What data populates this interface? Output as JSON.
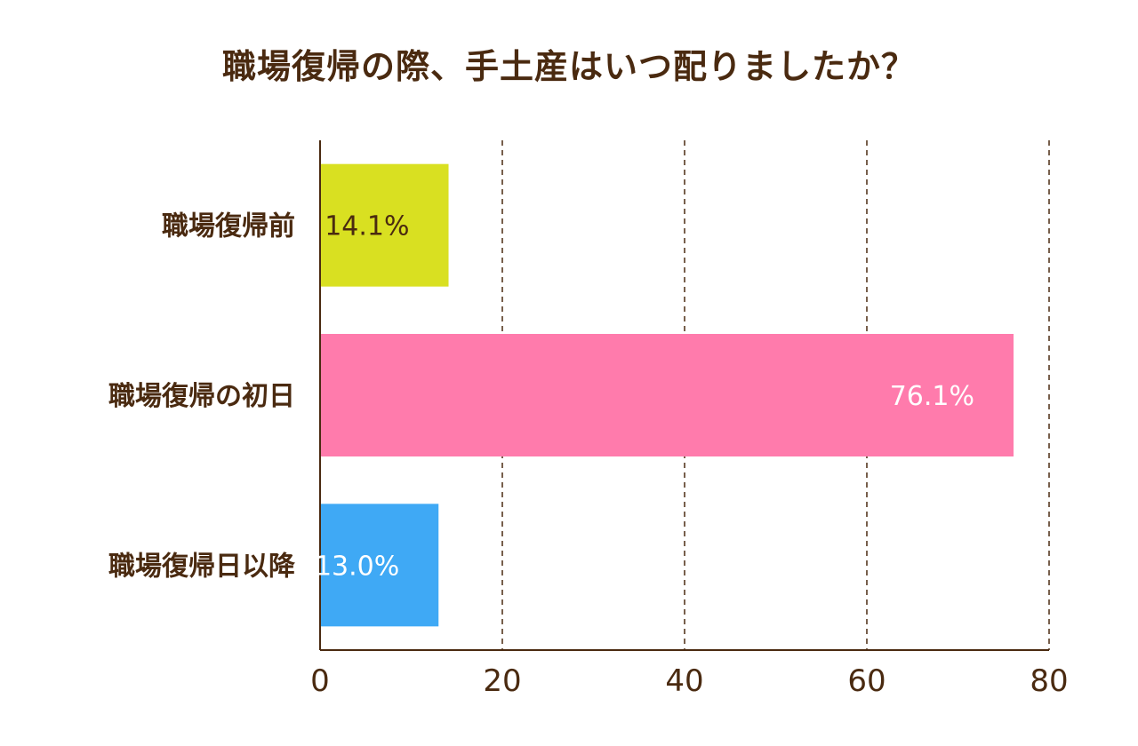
{
  "chart_data": {
    "type": "bar",
    "orientation": "horizontal",
    "title": "職場復帰の際、手土産はいつ配りましたか？",
    "categories": [
      "職場復帰前",
      "職場復帰の初日",
      "職場復帰日以降"
    ],
    "values": [
      14.1,
      76.1,
      13.0
    ],
    "value_labels": [
      "14.1%",
      "76.1%",
      "13.0%"
    ],
    "bar_colors": [
      "#d9e021",
      "#ff7bac",
      "#3fa9f5"
    ],
    "value_label_colors": [
      "#4a2a10",
      "#ffffff",
      "#ffffff"
    ],
    "xlim": [
      0,
      80
    ],
    "xticks": [
      0,
      20,
      40,
      60,
      80
    ],
    "xtick_labels": [
      "0",
      "20",
      "40",
      "60",
      "80"
    ],
    "grid": "vertical dashed",
    "legend": "none",
    "text_color": "#4a2a10"
  }
}
